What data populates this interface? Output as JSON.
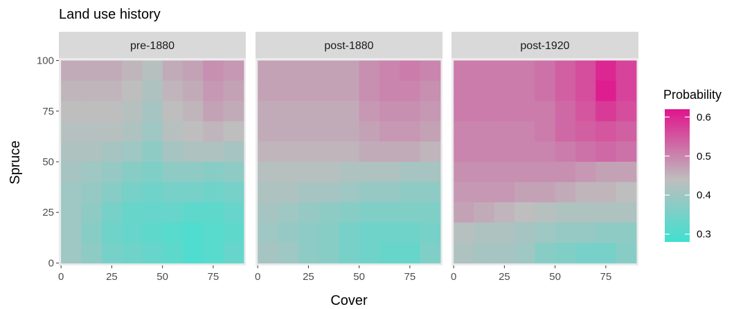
{
  "chart_data": {
    "type": "heatmap",
    "title": "Land use history",
    "xlabel": "Cover",
    "ylabel": "Spruce",
    "xlim": [
      0,
      90
    ],
    "ylim": [
      0,
      100
    ],
    "x_ticks": [
      "0",
      "25",
      "50",
      "75"
    ],
    "y_ticks": [
      "0",
      "25",
      "50",
      "75",
      "100"
    ],
    "legend": {
      "title": "Probability",
      "ticks": [
        "0.3",
        "0.4",
        "0.5",
        "0.6"
      ],
      "range": [
        0.28,
        0.62
      ],
      "colors": {
        "low": "#40E0D0",
        "mid": "#BEBEBE",
        "high": "#E0148C"
      },
      "position": "right"
    },
    "facets": [
      {
        "label": "pre-1880",
        "grid_x": [
          5,
          15,
          25,
          35,
          45,
          55,
          65,
          75,
          85
        ],
        "grid_y": [
          95,
          85,
          75,
          65,
          55,
          45,
          35,
          25,
          15,
          5
        ],
        "values": [
          [
            0.46,
            0.46,
            0.46,
            0.45,
            0.43,
            0.46,
            0.47,
            0.49,
            0.48
          ],
          [
            0.45,
            0.45,
            0.45,
            0.44,
            0.42,
            0.45,
            0.46,
            0.48,
            0.47
          ],
          [
            0.44,
            0.44,
            0.44,
            0.43,
            0.41,
            0.44,
            0.45,
            0.47,
            0.46
          ],
          [
            0.43,
            0.43,
            0.43,
            0.42,
            0.4,
            0.43,
            0.44,
            0.45,
            0.44
          ],
          [
            0.42,
            0.42,
            0.41,
            0.4,
            0.38,
            0.41,
            0.42,
            0.42,
            0.41
          ],
          [
            0.41,
            0.4,
            0.39,
            0.37,
            0.36,
            0.38,
            0.38,
            0.37,
            0.38
          ],
          [
            0.4,
            0.39,
            0.37,
            0.35,
            0.34,
            0.35,
            0.35,
            0.34,
            0.35
          ],
          [
            0.4,
            0.38,
            0.35,
            0.33,
            0.33,
            0.33,
            0.32,
            0.32,
            0.33
          ],
          [
            0.4,
            0.37,
            0.34,
            0.33,
            0.32,
            0.31,
            0.3,
            0.31,
            0.32
          ],
          [
            0.4,
            0.38,
            0.35,
            0.34,
            0.33,
            0.32,
            0.3,
            0.31,
            0.33
          ]
        ]
      },
      {
        "label": "post-1880",
        "grid_x": [
          5,
          15,
          25,
          35,
          45,
          55,
          65,
          75,
          85
        ],
        "grid_y": [
          95,
          85,
          75,
          65,
          55,
          45,
          35,
          25,
          15,
          5
        ],
        "values": [
          [
            0.47,
            0.47,
            0.47,
            0.47,
            0.47,
            0.49,
            0.5,
            0.51,
            0.5
          ],
          [
            0.47,
            0.47,
            0.47,
            0.47,
            0.47,
            0.49,
            0.5,
            0.5,
            0.49
          ],
          [
            0.46,
            0.46,
            0.46,
            0.46,
            0.46,
            0.48,
            0.49,
            0.49,
            0.48
          ],
          [
            0.46,
            0.46,
            0.46,
            0.46,
            0.46,
            0.47,
            0.48,
            0.48,
            0.47
          ],
          [
            0.45,
            0.45,
            0.45,
            0.45,
            0.45,
            0.46,
            0.46,
            0.46,
            0.45
          ],
          [
            0.43,
            0.43,
            0.43,
            0.43,
            0.42,
            0.42,
            0.42,
            0.41,
            0.41
          ],
          [
            0.42,
            0.42,
            0.41,
            0.41,
            0.4,
            0.39,
            0.39,
            0.38,
            0.38
          ],
          [
            0.41,
            0.4,
            0.39,
            0.38,
            0.37,
            0.36,
            0.36,
            0.36,
            0.36
          ],
          [
            0.4,
            0.39,
            0.38,
            0.37,
            0.35,
            0.34,
            0.34,
            0.34,
            0.35
          ],
          [
            0.41,
            0.4,
            0.38,
            0.37,
            0.35,
            0.34,
            0.33,
            0.33,
            0.36
          ]
        ]
      },
      {
        "label": "post-1920",
        "grid_x": [
          5,
          15,
          25,
          35,
          45,
          55,
          65,
          75,
          85
        ],
        "grid_y": [
          95,
          85,
          75,
          65,
          55,
          45,
          35,
          25,
          15,
          5
        ],
        "values": [
          [
            0.51,
            0.51,
            0.51,
            0.51,
            0.52,
            0.54,
            0.56,
            0.6,
            0.57
          ],
          [
            0.51,
            0.51,
            0.51,
            0.51,
            0.52,
            0.54,
            0.56,
            0.61,
            0.57
          ],
          [
            0.51,
            0.51,
            0.51,
            0.51,
            0.51,
            0.53,
            0.55,
            0.58,
            0.56
          ],
          [
            0.5,
            0.5,
            0.5,
            0.5,
            0.51,
            0.53,
            0.54,
            0.55,
            0.54
          ],
          [
            0.5,
            0.5,
            0.5,
            0.5,
            0.5,
            0.51,
            0.52,
            0.53,
            0.52
          ],
          [
            0.49,
            0.49,
            0.49,
            0.49,
            0.49,
            0.49,
            0.48,
            0.47,
            0.47
          ],
          [
            0.48,
            0.48,
            0.48,
            0.47,
            0.47,
            0.46,
            0.45,
            0.45,
            0.44
          ],
          [
            0.47,
            0.46,
            0.45,
            0.44,
            0.43,
            0.42,
            0.42,
            0.42,
            0.42
          ],
          [
            0.43,
            0.42,
            0.42,
            0.41,
            0.4,
            0.39,
            0.39,
            0.38,
            0.38
          ],
          [
            0.42,
            0.41,
            0.41,
            0.4,
            0.37,
            0.36,
            0.35,
            0.35,
            0.37
          ]
        ]
      }
    ]
  }
}
